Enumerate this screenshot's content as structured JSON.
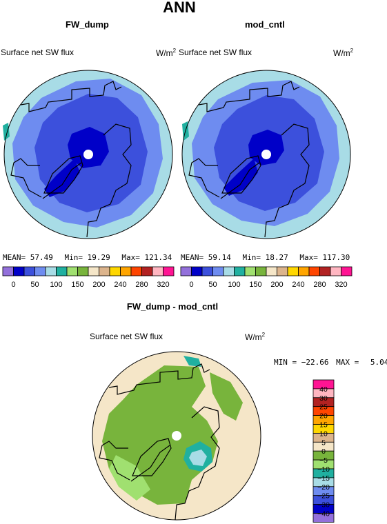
{
  "page_title": "ANN",
  "panels": [
    {
      "case_name": "FW_dump",
      "variable": "Surface net SW flux",
      "unit_base": "W/m",
      "unit_exp": "2",
      "stats": {
        "mean_label": "MEAN=",
        "mean": "57.49",
        "min_label": "Min=",
        "min": "19.29",
        "max_label": "Max=",
        "max": "121.34"
      }
    },
    {
      "case_name": "mod_cntl",
      "variable": "Surface net SW flux",
      "unit_base": "W/m",
      "unit_exp": "2",
      "stats": {
        "mean_label": "MEAN=",
        "mean": "59.14",
        "min_label": "Min=",
        "min": "18.27",
        "max_label": "Max=",
        "max": "117.30"
      }
    }
  ],
  "top_colorbar": {
    "colors": [
      "#9370db",
      "#0000c8",
      "#3c50dc",
      "#6e8cf0",
      "#a8dce6",
      "#20b0a0",
      "#a0e070",
      "#78b43c",
      "#f5e6c8",
      "#dcb48c",
      "#ffd700",
      "#ffa500",
      "#ff4500",
      "#b22222",
      "#ffb6c1",
      "#ff1493"
    ],
    "labels": [
      "0",
      "50",
      "100",
      "150",
      "200",
      "240",
      "280",
      "320"
    ]
  },
  "diff_panel": {
    "title": "FW_dump - mod_cntl",
    "variable": "Surface net SW flux",
    "unit_base": "W/m",
    "unit_exp": "2",
    "min_label": "MIN =",
    "min": "−22.66",
    "max_label": "MAX =",
    "max": "5.04"
  },
  "diff_colorbar": {
    "colors": [
      "#ff1493",
      "#ffb6c1",
      "#b22222",
      "#ff4500",
      "#ffa500",
      "#ffd700",
      "#dcb48c",
      "#f5e6c8",
      "#78b43c",
      "#a0e070",
      "#20b0a0",
      "#a8dce6",
      "#6e8cf0",
      "#3c50dc",
      "#0000c8",
      "#9370db"
    ],
    "labels": [
      "40",
      "30",
      "25",
      "20",
      "15",
      "10",
      "5",
      "0",
      "−5",
      "−10",
      "−15",
      "−20",
      "−25",
      "−30",
      "−40"
    ]
  },
  "chart_data": [
    {
      "type": "heatmap",
      "title": "FW_dump",
      "subtitle": "Surface net SW flux",
      "units": "W/m2",
      "mean": 57.49,
      "min": 19.29,
      "max": 121.34,
      "colorbar_levels": [
        0,
        50,
        100,
        150,
        200,
        240,
        280,
        320
      ]
    },
    {
      "type": "heatmap",
      "title": "mod_cntl",
      "subtitle": "Surface net SW flux",
      "units": "W/m2",
      "mean": 59.14,
      "min": 18.27,
      "max": 117.3,
      "colorbar_levels": [
        0,
        50,
        100,
        150,
        200,
        240,
        280,
        320
      ]
    },
    {
      "type": "heatmap",
      "title": "FW_dump - mod_cntl",
      "subtitle": "Surface net SW flux",
      "units": "W/m2",
      "min": -22.66,
      "max": 5.04,
      "colorbar_levels": [
        40,
        30,
        25,
        20,
        15,
        10,
        5,
        0,
        -5,
        -10,
        -15,
        -20,
        -25,
        -30,
        -40
      ]
    }
  ]
}
